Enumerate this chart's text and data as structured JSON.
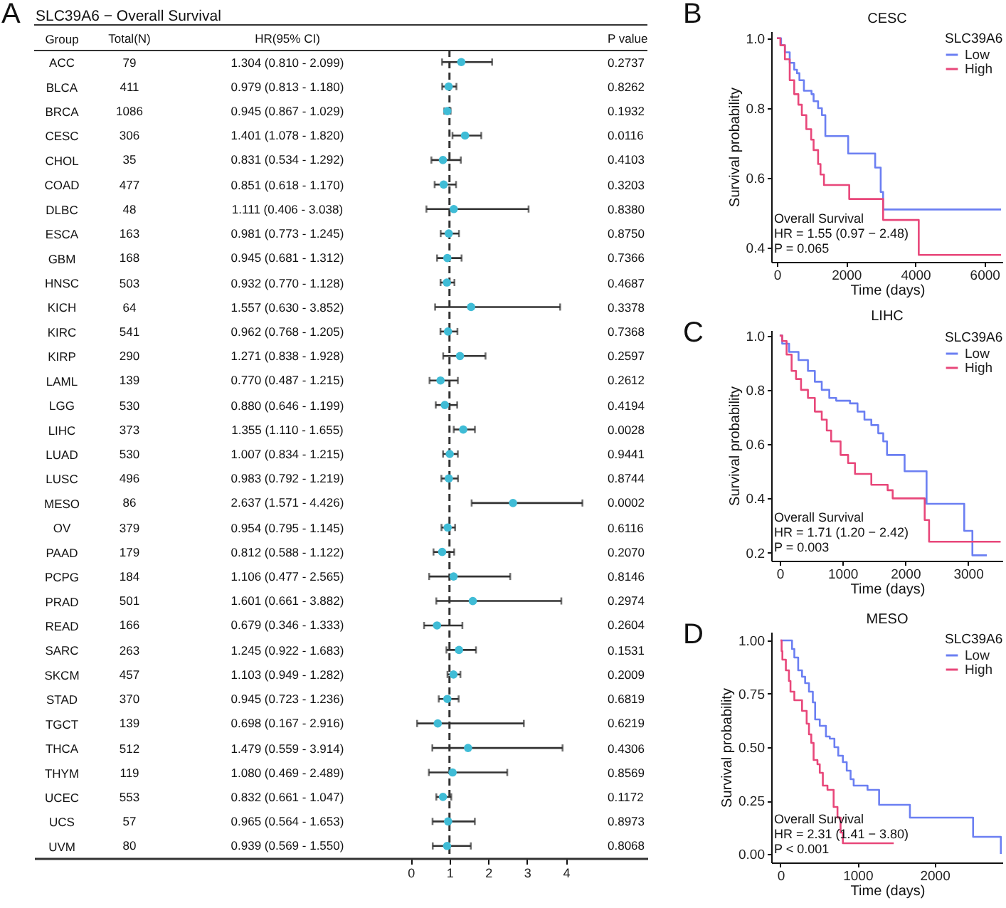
{
  "chart_data": [
    {
      "type": "scatter",
      "orientation": "horizontal",
      "title": "SLC39A6 − Overall Survival",
      "ylabel": "Group",
      "color": "#3fbcd6",
      "marker": "circle",
      "categories": [
        "ACC",
        "BLCA",
        "BRCA",
        "CESC",
        "CHOL",
        "COAD",
        "DLBC",
        "ESCA",
        "GBM",
        "HNSC",
        "KICH",
        "KIRC",
        "KIRP",
        "LAML",
        "LGG",
        "LIHC",
        "LUAD",
        "LUSC",
        "MESO",
        "OV",
        "PAAD",
        "PCPG",
        "PRAD",
        "READ",
        "SARC",
        "SKCM",
        "STAD",
        "TGCT",
        "THCA",
        "THYM",
        "UCEC",
        "UCS",
        "UVM"
      ],
      "values": [
        1.304,
        0.979,
        0.945,
        1.401,
        0.831,
        0.851,
        1.111,
        0.981,
        0.945,
        0.932,
        1.557,
        0.962,
        1.271,
        0.77,
        0.88,
        1.355,
        1.007,
        0.983,
        2.637,
        0.954,
        0.812,
        1.106,
        1.601,
        0.679,
        1.245,
        1.103,
        0.945,
        0.698,
        1.479,
        1.08,
        0.832,
        0.965,
        0.939
      ],
      "errors": [
        [
          0.81,
          2.099
        ],
        [
          0.813,
          1.18
        ],
        [
          0.867,
          1.029
        ],
        [
          1.078,
          1.82
        ],
        [
          0.534,
          1.292
        ],
        [
          0.618,
          1.17
        ],
        [
          0.406,
          3.038
        ],
        [
          0.773,
          1.245
        ],
        [
          0.681,
          1.312
        ],
        [
          0.77,
          1.128
        ],
        [
          0.63,
          3.852
        ],
        [
          0.768,
          1.205
        ],
        [
          0.838,
          1.928
        ],
        [
          0.487,
          1.215
        ],
        [
          0.646,
          1.199
        ],
        [
          1.11,
          1.655
        ],
        [
          0.834,
          1.215
        ],
        [
          0.792,
          1.219
        ],
        [
          1.571,
          4.426
        ],
        [
          0.795,
          1.145
        ],
        [
          0.588,
          1.122
        ],
        [
          0.477,
          2.565
        ],
        [
          0.661,
          3.882
        ],
        [
          0.346,
          1.333
        ],
        [
          0.922,
          1.683
        ],
        [
          0.949,
          1.282
        ],
        [
          0.723,
          1.236
        ],
        [
          0.167,
          2.916
        ],
        [
          0.559,
          3.914
        ],
        [
          0.469,
          2.489
        ],
        [
          0.661,
          1.047
        ],
        [
          0.564,
          1.653
        ],
        [
          0.569,
          1.55
        ]
      ],
      "xlim": [
        -9.7,
        6.1
      ],
      "xticks": [
        0,
        1,
        2,
        3,
        4
      ],
      "ref_lines": [
        {
          "axis": "x",
          "value": 1,
          "line_style": "dashed"
        }
      ],
      "annotations": [
        "A",
        "Total(N)",
        "HR(95% CI)",
        "P value",
        "79",
        "411",
        "1086",
        "306",
        "35",
        "477",
        "48",
        "163",
        "168",
        "503",
        "64",
        "541",
        "290",
        "139",
        "530",
        "373",
        "530",
        "496",
        "86",
        "379",
        "179",
        "184",
        "501",
        "166",
        "263",
        "457",
        "370",
        "139",
        "512",
        "119",
        "553",
        "57",
        "80",
        "1.304 (0.810 - 2.099)",
        "0.979 (0.813 - 1.180)",
        "0.945 (0.867 - 1.029)",
        "1.401 (1.078 - 1.820)",
        "0.831 (0.534 - 1.292)",
        "0.851 (0.618 - 1.170)",
        "1.111 (0.406 - 3.038)",
        "0.981 (0.773 - 1.245)",
        "0.945 (0.681 - 1.312)",
        "0.932 (0.770 - 1.128)",
        "1.557 (0.630 - 3.852)",
        "0.962 (0.768 - 1.205)",
        "1.271 (0.838 - 1.928)",
        "0.770 (0.487 - 1.215)",
        "0.880 (0.646 - 1.199)",
        "1.355 (1.110 - 1.655)",
        "1.007 (0.834 - 1.215)",
        "0.983 (0.792 - 1.219)",
        "2.637 (1.571 - 4.426)",
        "0.954 (0.795 - 1.145)",
        "0.812 (0.588 - 1.122)",
        "1.106 (0.477 - 2.565)",
        "1.601 (0.661 - 3.882)",
        "0.679 (0.346 - 1.333)",
        "1.245 (0.922 - 1.683)",
        "1.103 (0.949 - 1.282)",
        "0.945 (0.723 - 1.236)",
        "0.698 (0.167 - 2.916)",
        "1.479 (0.559 - 3.914)",
        "1.080 (0.469 - 2.489)",
        "0.832 (0.661 - 1.047)",
        "0.965 (0.564 - 1.653)",
        "0.939 (0.569 - 1.550)",
        "0.2737",
        "0.8262",
        "0.1932",
        "0.0116",
        "0.4103",
        "0.3203",
        "0.8380",
        "0.8750",
        "0.7366",
        "0.4687",
        "0.3378",
        "0.7368",
        "0.2597",
        "0.2612",
        "0.4194",
        "0.0028",
        "0.9441",
        "0.8744",
        "0.0002",
        "0.6116",
        "0.2070",
        "0.8146",
        "0.2974",
        "0.2604",
        "0.1531",
        "0.2009",
        "0.6819",
        "0.6219",
        "0.4306",
        "0.8569",
        "0.1172",
        "0.8973",
        "0.8068"
      ]
    },
    {
      "type": "step",
      "title": "CESC",
      "xlabel": "Time (days)",
      "ylabel": "Survival probability",
      "legend_title": "SLC39A6",
      "legend": "top right",
      "xlim": [
        -165,
        6540
      ],
      "xticks": [
        0,
        2000,
        4000,
        6000
      ],
      "ylim": [
        0.36,
        1.02
      ],
      "yticks": [
        0.4,
        0.6,
        0.8,
        {
          "value": 1,
          "label": "1.0"
        }
      ],
      "annotations": [
        "B",
        "Overall Survival",
        "HR = 1.55 (0.97 − 2.48)",
        "P = 0.065"
      ],
      "series": [
        {
          "name": "Low",
          "color": "#6b7ff2",
          "x": [
            0,
            120,
            230,
            370,
            500,
            580,
            650,
            780,
            1000,
            1060,
            1190,
            1300,
            1400,
            2060,
            2840,
            3000,
            3070,
            6480
          ],
          "values": [
            1,
            0.98,
            0.96,
            0.93,
            0.91,
            0.9,
            0.88,
            0.85,
            0.84,
            0.82,
            0.8,
            0.78,
            0.72,
            0.67,
            0.63,
            0.56,
            0.51,
            0.51
          ]
        },
        {
          "name": "High",
          "color": "#e8477a",
          "x": [
            0,
            100,
            230,
            370,
            500,
            620,
            720,
            850,
            990,
            1060,
            1190,
            1260,
            1360,
            2090,
            3070,
            4100,
            6480
          ],
          "values": [
            1,
            0.98,
            0.94,
            0.88,
            0.84,
            0.81,
            0.78,
            0.74,
            0.71,
            0.68,
            0.64,
            0.61,
            0.58,
            0.54,
            0.48,
            0.38,
            0.38
          ]
        }
      ]
    },
    {
      "type": "step",
      "title": "LIHC",
      "xlabel": "Time (days)",
      "ylabel": "Survival probability",
      "legend_title": "SLC39A6",
      "legend": "top right",
      "xlim": [
        -135,
        3560
      ],
      "xticks": [
        0,
        1000,
        2000,
        3000
      ],
      "ylim": [
        0.17,
        1.02
      ],
      "yticks": [
        0.2,
        0.4,
        0.6,
        0.8,
        {
          "value": 1,
          "label": "1.0"
        }
      ],
      "annotations": [
        "C",
        "Overall Survival",
        "HR = 1.71 (1.20 − 2.42)",
        "P = 0.003"
      ],
      "series": [
        {
          "name": "Low",
          "color": "#6b7ff2",
          "x": [
            0,
            40,
            150,
            300,
            450,
            560,
            670,
            790,
            900,
            1120,
            1240,
            1350,
            1460,
            1570,
            1650,
            1710,
            1990,
            2340,
            2940,
            3070,
            3300
          ],
          "values": [
            1,
            0.97,
            0.94,
            0.91,
            0.87,
            0.83,
            0.8,
            0.77,
            0.76,
            0.75,
            0.72,
            0.69,
            0.67,
            0.64,
            0.61,
            0.56,
            0.5,
            0.38,
            0.28,
            0.19,
            0.19
          ]
        },
        {
          "name": "High",
          "color": "#e8477a",
          "x": [
            0,
            40,
            110,
            190,
            260,
            340,
            450,
            560,
            670,
            750,
            820,
            970,
            1090,
            1200,
            1460,
            1720,
            1800,
            2310,
            2380,
            3520
          ],
          "values": [
            1,
            0.98,
            0.93,
            0.87,
            0.84,
            0.8,
            0.77,
            0.72,
            0.69,
            0.65,
            0.61,
            0.56,
            0.53,
            0.49,
            0.45,
            0.43,
            0.4,
            0.32,
            0.24,
            0.24
          ]
        }
      ]
    },
    {
      "type": "step",
      "title": "MESO",
      "xlabel": "Time (days)",
      "ylabel": "Survival probability",
      "legend_title": "SLC39A6",
      "legend": "top right",
      "xlim": [
        -120,
        2890
      ],
      "xticks": [
        0,
        1000,
        2000
      ],
      "ylim": [
        -0.04,
        1.04
      ],
      "yticks": [
        {
          "value": 0,
          "label": "0.00"
        },
        0.25,
        {
          "value": 0.5,
          "label": "0.50"
        },
        0.75,
        {
          "value": 1,
          "label": "1.00"
        }
      ],
      "annotations": [
        "D",
        "Overall Survival",
        "HR = 2.31 (1.41 − 3.80)",
        "P < 0.001"
      ],
      "series": [
        {
          "name": "Low",
          "color": "#6b7ff2",
          "x": [
            0,
            150,
            180,
            230,
            280,
            320,
            370,
            420,
            450,
            510,
            590,
            640,
            700,
            750,
            810,
            860,
            910,
            950,
            1130,
            1280,
            1680,
            2500,
            2860
          ],
          "values": [
            1,
            0.96,
            0.92,
            0.86,
            0.83,
            0.8,
            0.76,
            0.71,
            0.63,
            0.6,
            0.55,
            0.54,
            0.5,
            0.46,
            0.43,
            0.39,
            0.35,
            0.32,
            0.3,
            0.23,
            0.17,
            0.08,
            0
          ]
        },
        {
          "name": "High",
          "color": "#e8477a",
          "x": [
            0,
            15,
            25,
            70,
            110,
            130,
            180,
            280,
            340,
            370,
            400,
            430,
            480,
            510,
            550,
            610,
            690,
            740,
            780,
            810,
            1470
          ],
          "values": [
            1,
            0.95,
            0.91,
            0.86,
            0.81,
            0.76,
            0.72,
            0.67,
            0.61,
            0.56,
            0.52,
            0.44,
            0.42,
            0.38,
            0.32,
            0.3,
            0.22,
            0.17,
            0.1,
            0.05,
            0.05
          ]
        }
      ]
    }
  ]
}
